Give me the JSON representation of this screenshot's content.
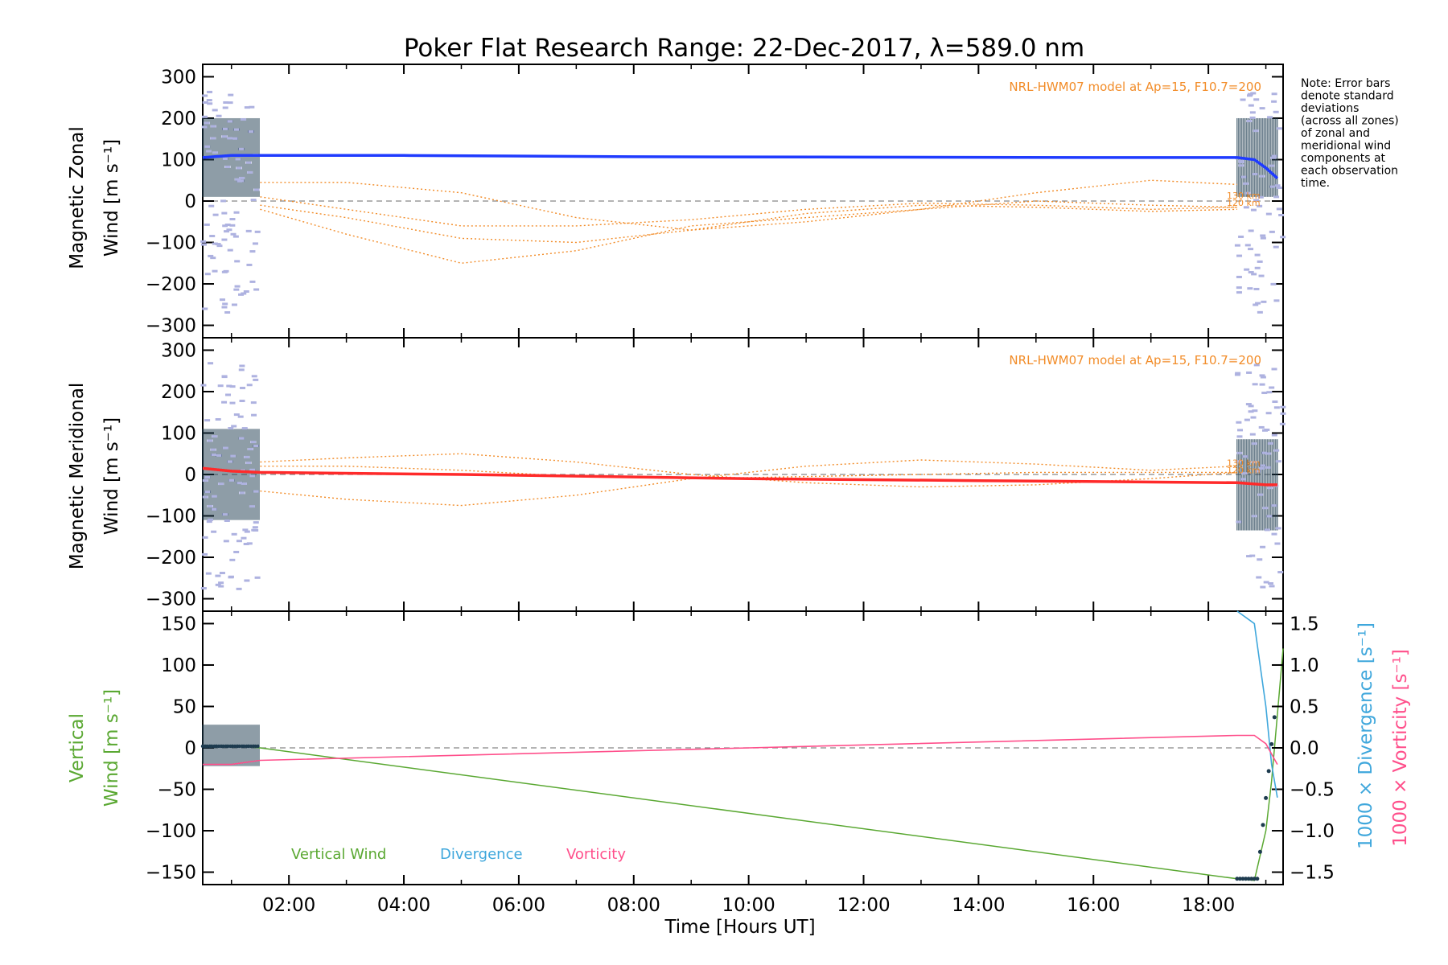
{
  "title": "Poker Flat Research Range: 22-Dec-2017, λ=589.0 nm",
  "note": [
    "Note: Error bars",
    "denote standard",
    "deviations",
    "(across all zones)",
    "of zonal and",
    "meridional wind",
    "components at",
    "each observation",
    "time."
  ],
  "model_label": "NRL-HWM07 model at Ap=15, F10.7=200",
  "alt_labels": [
    "130 km",
    "120 km"
  ],
  "xaxis": {
    "label": "Time [Hours UT]",
    "ticks": [
      "02:00",
      "04:00",
      "06:00",
      "08:00",
      "10:00",
      "12:00",
      "14:00",
      "16:00",
      "18:00"
    ]
  },
  "panels": {
    "zonal": {
      "ylabel1": "Magnetic Zonal",
      "ylabel2": "Wind [m s⁻¹]"
    },
    "meridional": {
      "ylabel1": "Magnetic Meridional",
      "ylabel2": "Wind [m s⁻¹]"
    },
    "vertical": {
      "ylabel1": "Vertical",
      "ylabel2": "Wind [m s⁻¹]",
      "right1": "1000 × Divergence [s⁻¹]",
      "right2": "1000 × Vorticity [s⁻¹]",
      "legend": [
        "Vertical Wind",
        "Divergence",
        "Vorticity"
      ]
    }
  },
  "colors": {
    "zonal": "#1f3bff",
    "meridional": "#ff2a2a",
    "model": "#f28c28",
    "vertical": "#5aa832",
    "divergence": "#3fa7dc",
    "vorticity": "#ff4f8b",
    "errbar": "#1d3b4f",
    "zone": "#aeb2e0"
  },
  "chart_data": [
    {
      "type": "line",
      "title": "Poker Flat Research Range: 22-Dec-2017, λ=589.0 nm",
      "xlabel": "Time [Hours UT]",
      "ylabel": "Magnetic Zonal Wind [m s⁻¹]",
      "xlim": [
        0.5,
        19.3
      ],
      "ylim": [
        -330,
        330
      ],
      "yticks": [
        300,
        200,
        100,
        0,
        -100,
        -200,
        -300
      ],
      "series": [
        {
          "name": "Magnetic Zonal Wind",
          "x": [
            0.5,
            1.0,
            1.5,
            4.0,
            8.0,
            12.0,
            16.0,
            18.5,
            18.8,
            19.0,
            19.2
          ],
          "y": [
            105,
            110,
            110,
            110,
            107,
            106,
            105,
            105,
            100,
            80,
            55
          ]
        },
        {
          "name": "HWM07 120 km",
          "x": [
            1.5,
            3,
            5,
            7,
            9,
            11,
            13,
            15,
            17,
            18.5
          ],
          "y": [
            -10,
            -40,
            -90,
            -100,
            -70,
            -30,
            -10,
            -15,
            -25,
            -20
          ]
        },
        {
          "name": "HWM07 130 km",
          "x": [
            1.5,
            3,
            5,
            7,
            9,
            11,
            13,
            15,
            17,
            18.5
          ],
          "y": [
            -20,
            -80,
            -150,
            -120,
            -60,
            -40,
            -20,
            20,
            50,
            40
          ]
        },
        {
          "name": "HWM07 model",
          "x": [
            1.5,
            3,
            5,
            7,
            9,
            11,
            13,
            15,
            17,
            18.5
          ],
          "y": [
            45,
            45,
            20,
            -40,
            -70,
            -50,
            -20,
            0,
            -10,
            -15
          ]
        },
        {
          "name": "HWM07 model",
          "x": [
            1.5,
            3,
            5,
            7,
            9,
            11,
            13,
            15,
            17,
            18.5
          ],
          "y": [
            10,
            -20,
            -60,
            -60,
            -45,
            -20,
            -5,
            -10,
            -20,
            -15
          ]
        }
      ]
    },
    {
      "type": "line",
      "ylabel": "Magnetic Meridional Wind [m s⁻¹]",
      "xlim": [
        0.5,
        19.3
      ],
      "ylim": [
        -330,
        330
      ],
      "yticks": [
        300,
        200,
        100,
        0,
        -100,
        -200,
        -300
      ],
      "series": [
        {
          "name": "Magnetic Meridional Wind",
          "x": [
            0.5,
            1.0,
            1.5,
            5,
            10,
            14,
            18.5,
            19.0,
            19.2
          ],
          "y": [
            15,
            8,
            5,
            0,
            -10,
            -15,
            -20,
            -25,
            -25
          ]
        },
        {
          "name": "HWM07 120 km",
          "x": [
            1.5,
            3,
            5,
            7,
            9,
            11,
            13,
            15,
            17,
            18.5
          ],
          "y": [
            30,
            40,
            50,
            30,
            0,
            -20,
            -30,
            -25,
            -10,
            5
          ]
        },
        {
          "name": "HWM07 130 km",
          "x": [
            1.5,
            3,
            5,
            7,
            9,
            11,
            13,
            15,
            17,
            18.5
          ],
          "y": [
            -40,
            -60,
            -75,
            -50,
            -10,
            20,
            35,
            25,
            10,
            20
          ]
        },
        {
          "name": "HWM07 model",
          "x": [
            1.5,
            3,
            5,
            7,
            9,
            11,
            13,
            15,
            17,
            18.5
          ],
          "y": [
            20,
            20,
            10,
            -5,
            -10,
            -5,
            0,
            5,
            5,
            5
          ]
        }
      ]
    },
    {
      "type": "line",
      "ylabel": "Vertical Wind [m s⁻¹]",
      "ylabel_right": [
        "1000 × Divergence [s⁻¹]",
        "1000 × Vorticity [s⁻¹]"
      ],
      "xlim": [
        0.5,
        19.3
      ],
      "ylim": [
        -165,
        165
      ],
      "yticks": [
        150,
        100,
        50,
        0,
        -50,
        -100,
        -150
      ],
      "ylim_right": [
        -1.65,
        1.65
      ],
      "yticks_right": [
        1.5,
        1.0,
        0.5,
        0.0,
        -0.5,
        -1.0,
        -1.5
      ],
      "series": [
        {
          "name": "Vertical Wind",
          "x": [
            0.5,
            1.0,
            1.5,
            18.5,
            18.8,
            19.0,
            19.1,
            19.2,
            19.3
          ],
          "y": [
            2,
            3,
            0,
            -158,
            -160,
            -100,
            -40,
            40,
            120
          ]
        },
        {
          "name": "Divergence",
          "x": [
            18.5,
            18.8,
            18.9,
            19.0,
            19.1,
            19.2
          ],
          "y": [
            1.65,
            1.5,
            1.0,
            0.5,
            -0.2,
            -0.6
          ]
        },
        {
          "name": "Vorticity",
          "x": [
            0.5,
            0.9,
            1.0,
            1.5,
            10,
            18.5,
            18.8,
            19.0,
            19.2
          ],
          "y": [
            -0.2,
            -0.2,
            -0.2,
            -0.15,
            0.0,
            0.15,
            0.15,
            0.05,
            -0.2
          ]
        }
      ]
    }
  ]
}
